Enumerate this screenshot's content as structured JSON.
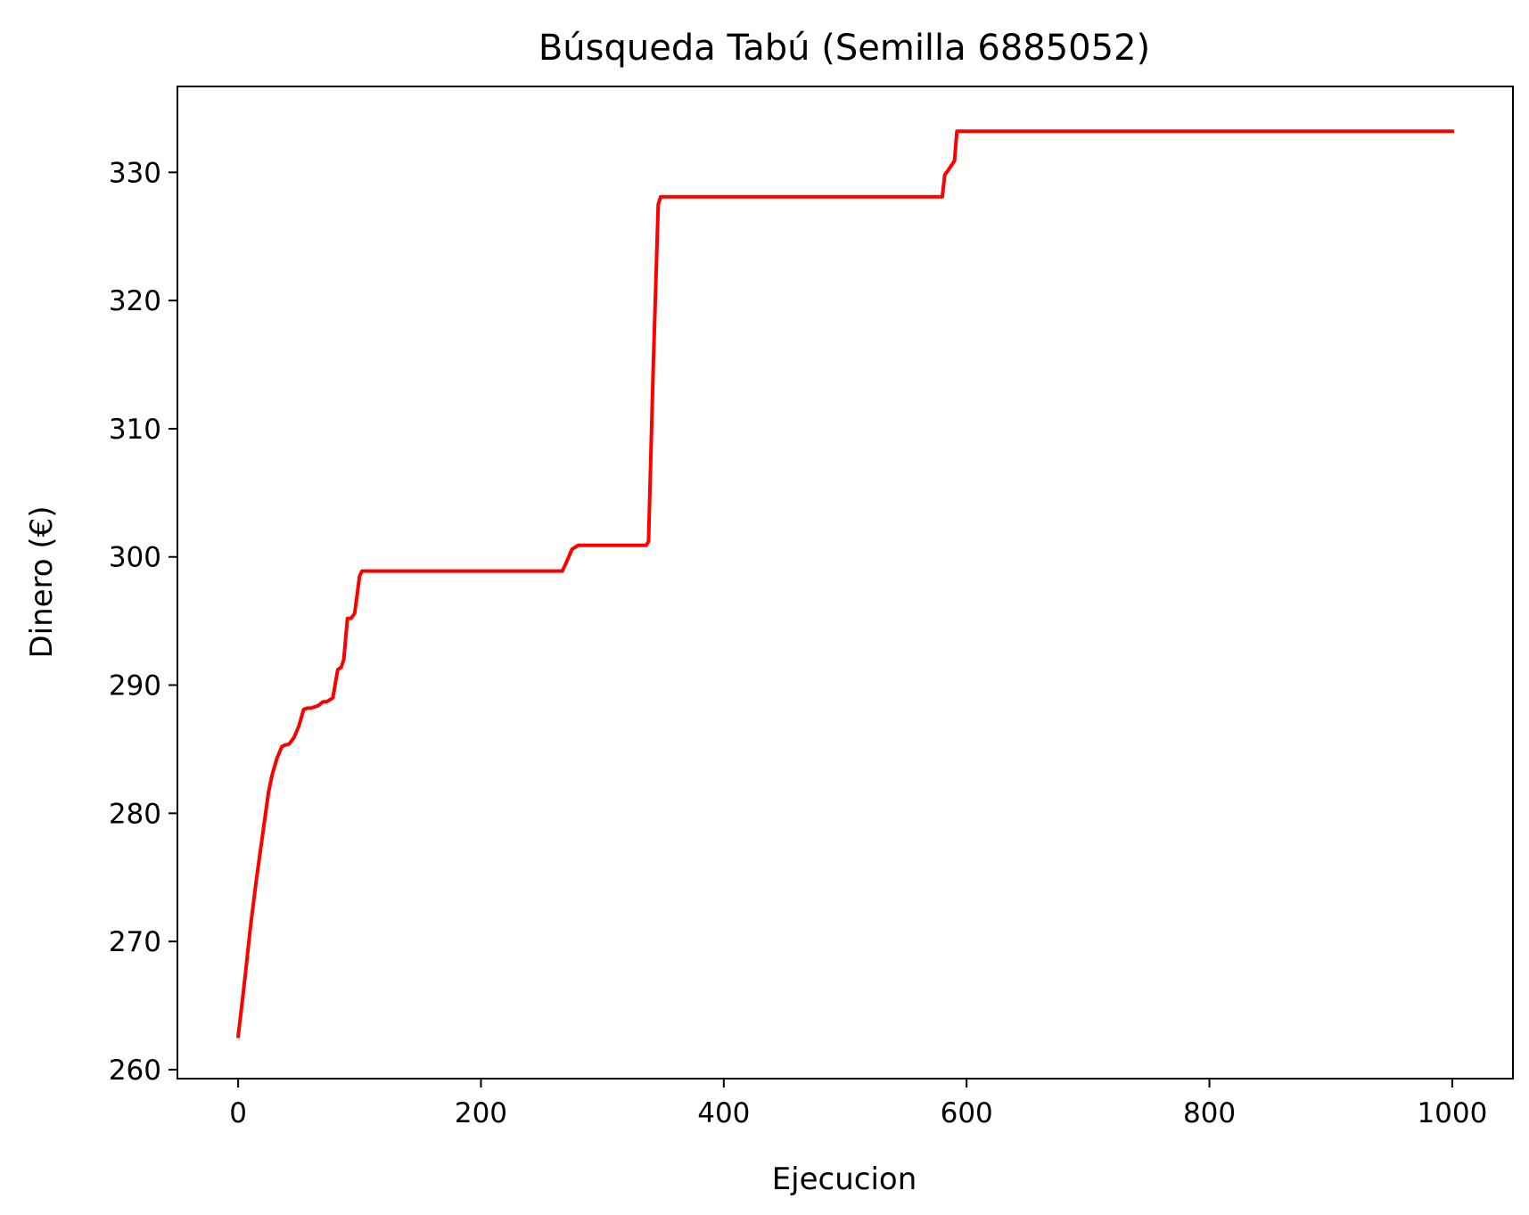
{
  "chart_data": {
    "type": "line",
    "title": "Búsqueda Tabú (Semilla 6885052)",
    "xlabel": "Ejecucion",
    "ylabel": "Dinero (€)",
    "xlim": [
      -50,
      1050
    ],
    "ylim": [
      259.3,
      336.7
    ],
    "xticks": [
      0,
      200,
      400,
      600,
      800,
      1000
    ],
    "yticks": [
      260,
      270,
      280,
      290,
      300,
      310,
      320,
      330
    ],
    "grid": false,
    "series": [
      {
        "color": "#ff0000",
        "x": [
          0,
          3,
          6,
          10,
          15,
          20,
          25,
          28,
          32,
          36,
          38,
          42,
          46,
          50,
          54,
          57,
          60,
          66,
          70,
          73,
          78,
          82,
          85,
          87,
          90,
          93,
          96,
          98,
          100,
          102,
          104,
          106,
          108,
          150,
          200,
          250,
          267,
          270,
          275,
          280,
          300,
          320,
          336,
          338,
          342,
          346,
          348,
          400,
          500,
          580,
          582,
          585,
          590,
          592,
          594,
          600,
          700,
          800,
          900,
          1000
        ],
        "y": [
          262.6,
          265.0,
          267.5,
          271.0,
          274.8,
          278.2,
          281.6,
          283.0,
          284.3,
          285.2,
          285.3,
          285.4,
          285.9,
          286.8,
          288.1,
          288.2,
          288.2,
          288.4,
          288.7,
          288.7,
          289.0,
          291.2,
          291.4,
          292.0,
          295.2,
          295.2,
          295.6,
          297.0,
          298.5,
          298.9,
          298.9,
          298.9,
          298.9,
          298.9,
          298.9,
          298.9,
          298.9,
          299.5,
          300.6,
          300.9,
          300.9,
          300.9,
          300.9,
          301.2,
          315.0,
          327.5,
          328.1,
          328.1,
          328.1,
          328.1,
          329.8,
          330.2,
          330.9,
          333.2,
          333.2,
          333.2,
          333.2,
          333.2,
          333.2,
          333.2
        ]
      }
    ]
  }
}
